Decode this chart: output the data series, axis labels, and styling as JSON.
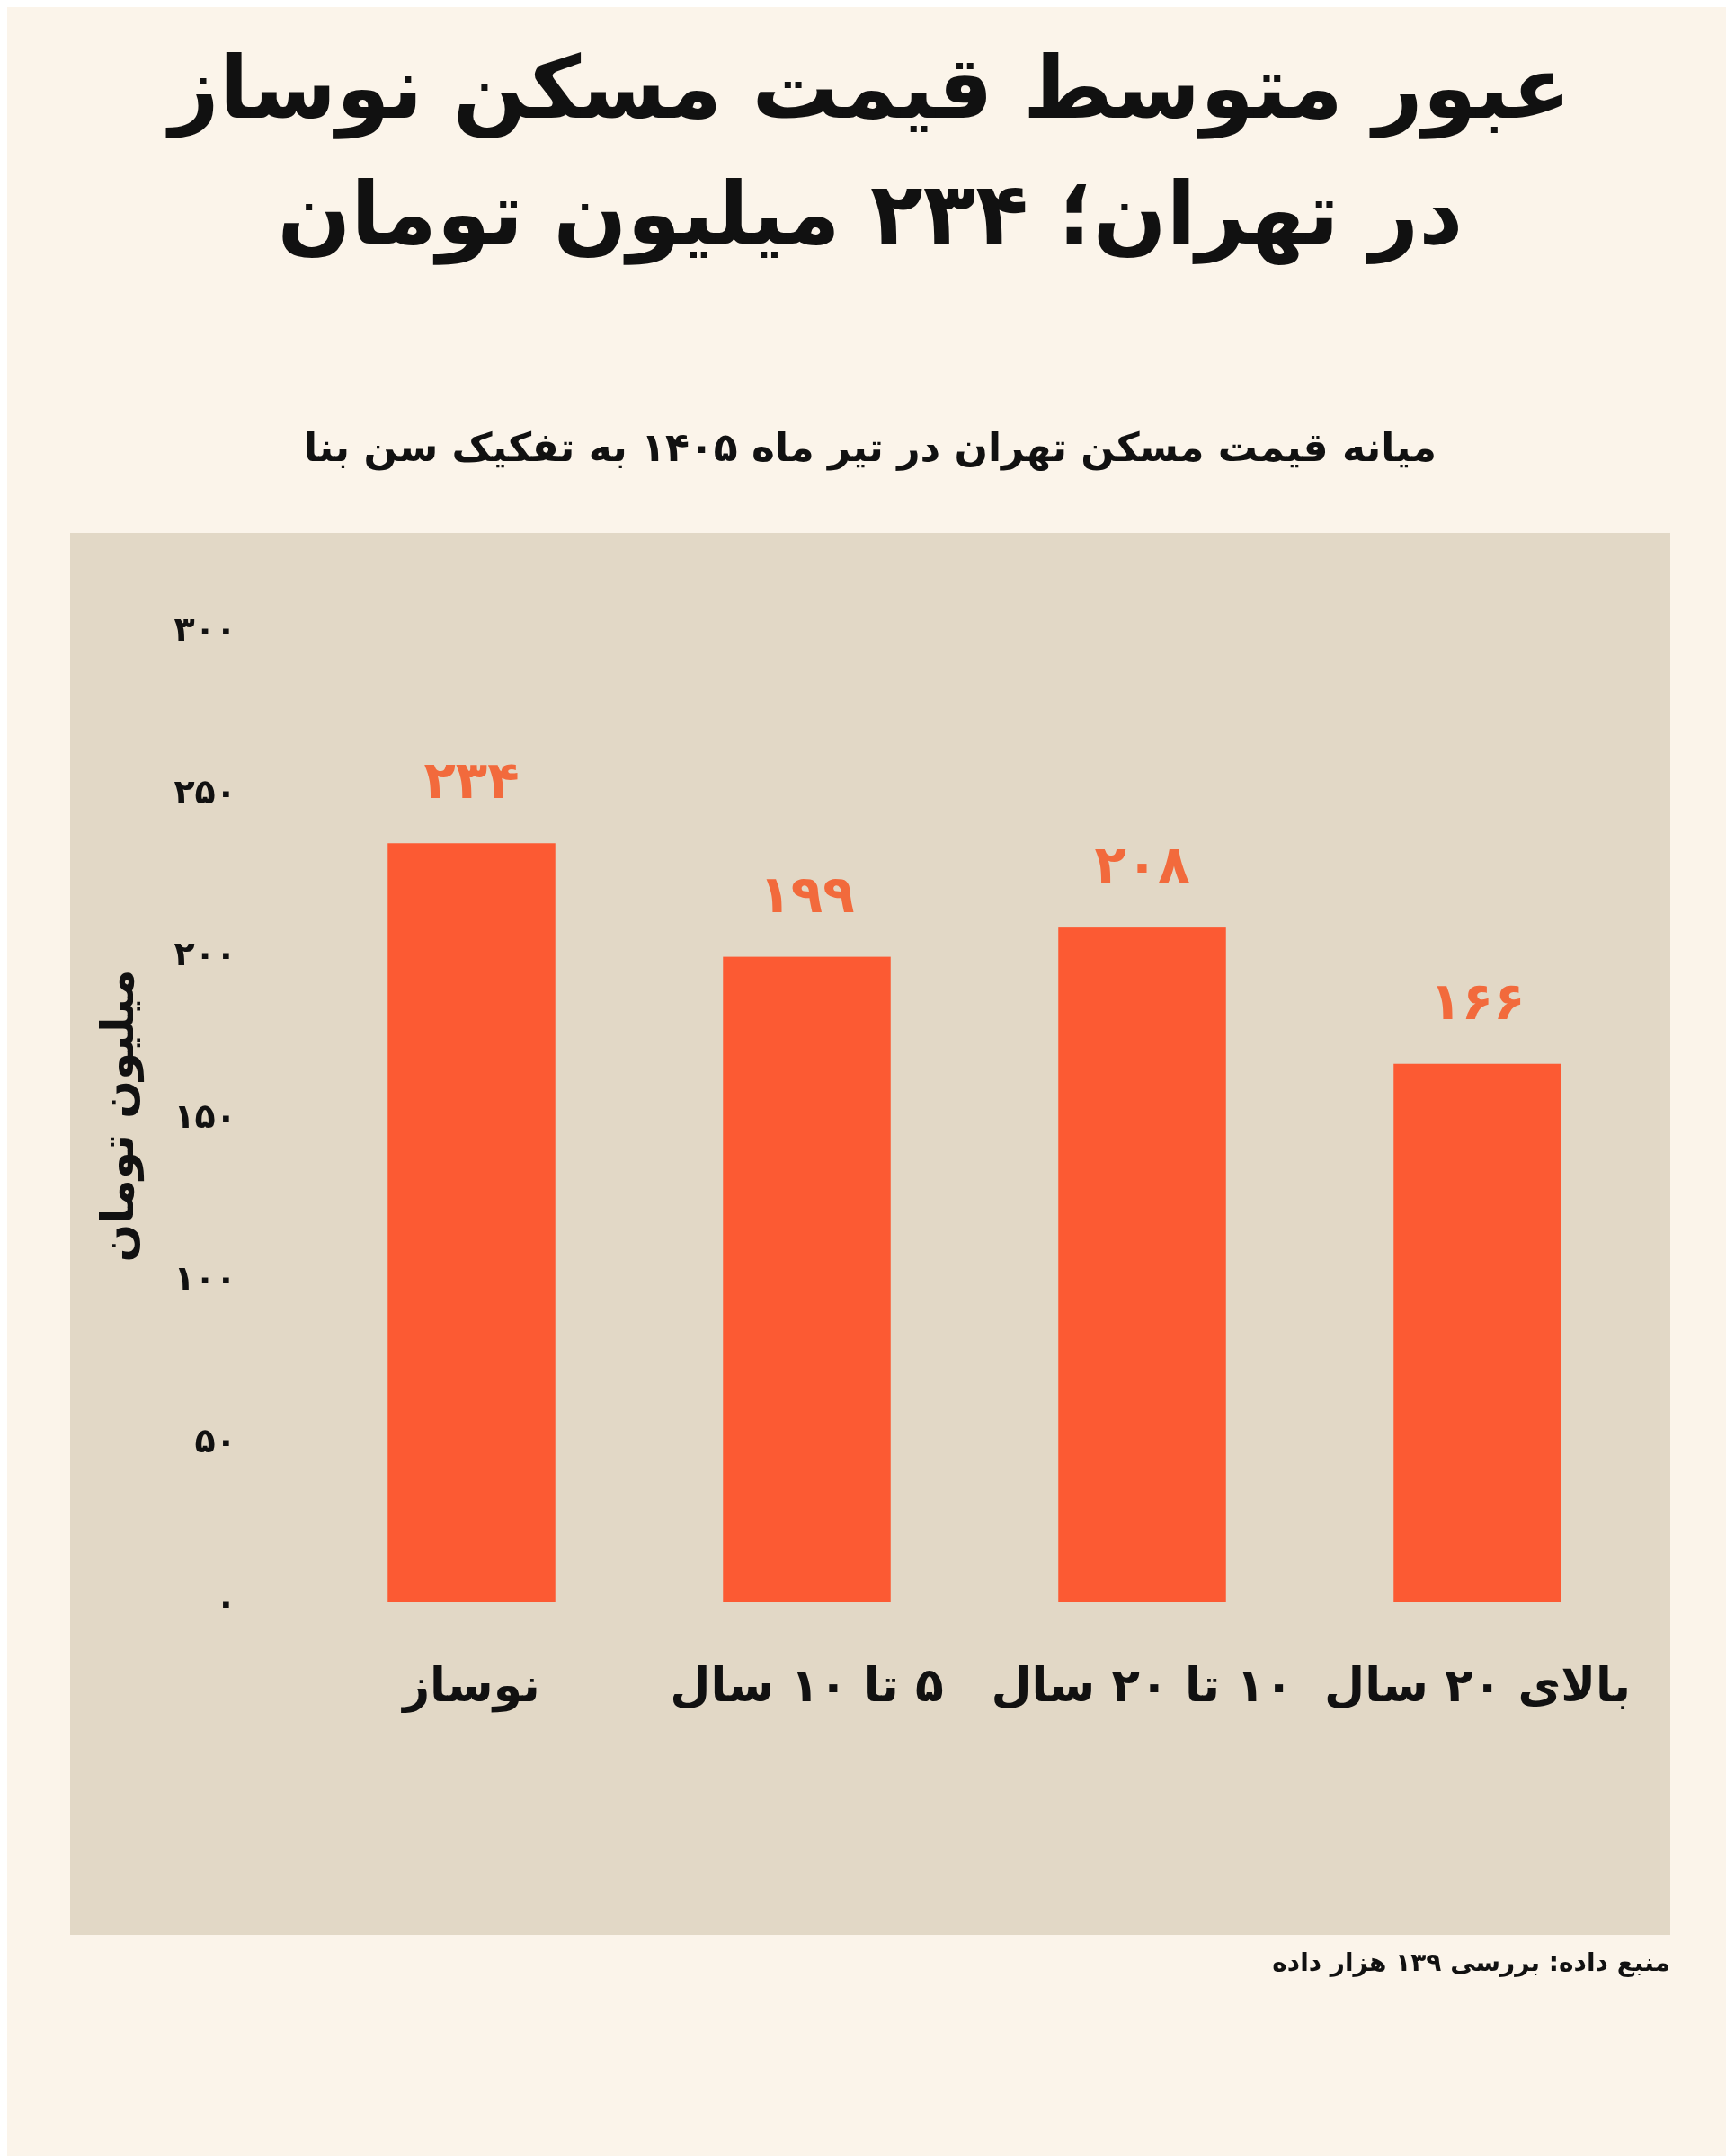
{
  "chart_data": {
    "type": "bar",
    "title": "عبور متوسط قیمت مسکن نوساز در تهران؛ ۲۳۴ میلیون تومان",
    "subtitle": "میانه قیمت مسکن تهران در تیر ماه ۱۴۰۵ به تفکیک سن بنا",
    "ylabel": "میلیون تومان",
    "categories": [
      "نوساز",
      "۵ تا ۱۰ سال",
      "۱۰ تا ۲۰ سال",
      "بالای ۲۰ سال"
    ],
    "values": [
      234,
      199,
      208,
      166
    ],
    "color": "#fc5a33",
    "value_labels": [
      "۲۳۴",
      "۱۹۹",
      "۲۰۸",
      "۱۶۶"
    ],
    "ylim": [
      0,
      300
    ],
    "yticks": [
      {
        "value": 0,
        "label": "۰"
      },
      {
        "value": 50,
        "label": "۵۰"
      },
      {
        "value": 100,
        "label": "۱۰۰"
      },
      {
        "value": 150,
        "label": "۱۵۰"
      },
      {
        "value": 200,
        "label": "۲۰۰"
      },
      {
        "value": 250,
        "label": "۲۵۰"
      },
      {
        "value": 300,
        "label": "۳۰۰"
      }
    ],
    "annotations": [
      "منبع داده: بررسی ۱۳۹ هزار داده"
    ]
  }
}
